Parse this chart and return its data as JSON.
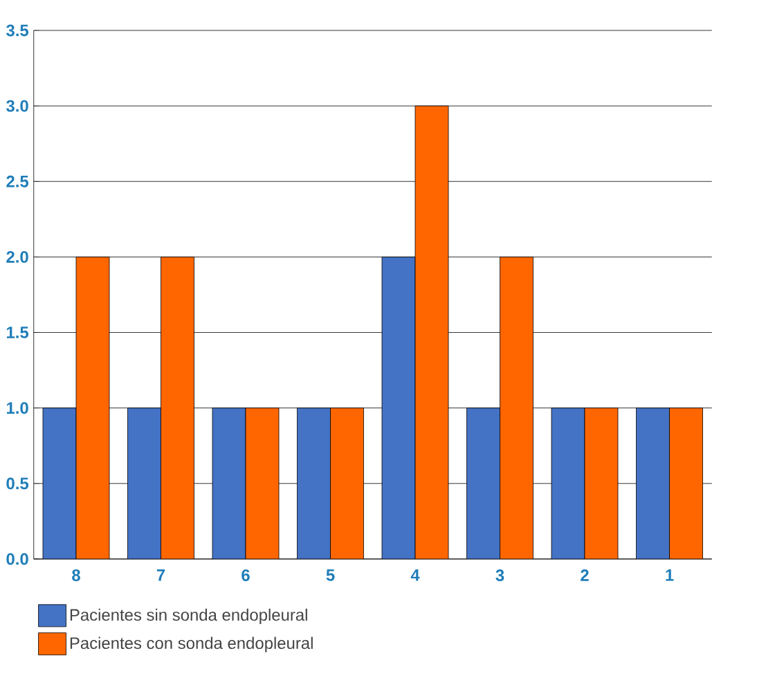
{
  "chart_data": {
    "type": "bar",
    "categories": [
      "8",
      "7",
      "6",
      "5",
      "4",
      "3",
      "2",
      "1"
    ],
    "series": [
      {
        "name": "Pacientes sin sonda endopleural",
        "color": "#4472c4",
        "values": [
          1,
          1,
          1,
          1,
          2,
          1,
          1,
          1
        ]
      },
      {
        "name": "Pacientes con sonda endopleural",
        "color": "#ff6600",
        "values": [
          2,
          2,
          1,
          1,
          3,
          2,
          1,
          1
        ]
      }
    ],
    "ylim": [
      0,
      3.5
    ],
    "yticks": [
      {
        "value": 0,
        "label": "0.0"
      },
      0.5,
      {
        "value": 1,
        "label": "1.0"
      },
      1.5,
      {
        "value": 2,
        "label": "2.0"
      },
      2.5,
      {
        "value": 3,
        "label": "3.0"
      },
      3.5
    ],
    "grid": "y",
    "legend": "bottom"
  }
}
